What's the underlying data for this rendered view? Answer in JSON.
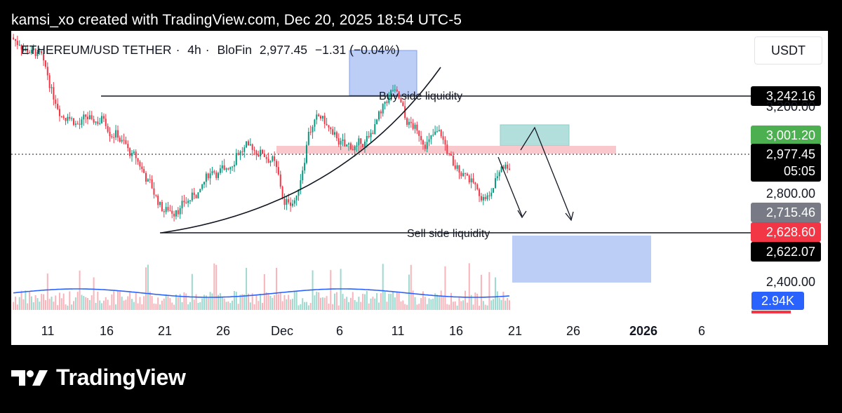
{
  "header": {
    "text": "kamsi_xo created with TradingView.com, Dec 20, 2025 18:54 UTC-5"
  },
  "symbol": {
    "name": "ETHEREUM/USD TETHER",
    "interval": "4h",
    "exchange": "BloFin",
    "price": "2,977.45",
    "change": "−1.31 (−0.04%)"
  },
  "unit": "USDT",
  "price_axis": {
    "tags": [
      {
        "value": "3,242.16",
        "color": "#000000"
      },
      {
        "value": "3,001.20",
        "color": "#4caf50"
      },
      {
        "value": "2,715.46",
        "color": "#787b86"
      },
      {
        "value": "2,628.60",
        "color": "#f23645"
      },
      {
        "value": "2,622.07",
        "color": "#000000"
      }
    ],
    "current": {
      "value": "2,977.45",
      "countdown": "05:05"
    },
    "labels": [
      {
        "value": "3,200.00"
      },
      {
        "value": "2,800.00"
      },
      {
        "value": "2,400.00"
      }
    ]
  },
  "volume": {
    "value": "2.94",
    "unit": "K"
  },
  "annotations": {
    "buy_side": "Buy side liquidity",
    "sell_side": "Sell side liquidity"
  },
  "x_axis": {
    "labels": [
      "11",
      "16",
      "21",
      "26",
      "Dec",
      "6",
      "11",
      "16",
      "21",
      "26",
      "2026",
      "6"
    ]
  },
  "colors": {
    "up": "#089981",
    "down": "#f23645",
    "volume_ma": "#2962ff",
    "zone_blue": "#bccdf6",
    "zone_green": "#b2dfdb",
    "zone_pink": "#f9c8cc"
  },
  "chart_data": {
    "type": "candlestick",
    "title": "ETHEREUM/USD TETHER · 4h · BloFin",
    "x": [
      "2025-11-09",
      "2025-11-10",
      "2025-11-11",
      "2025-11-12",
      "2025-11-13",
      "2025-11-14",
      "2025-11-15",
      "2025-11-16",
      "2025-11-17",
      "2025-11-18",
      "2025-11-19",
      "2025-11-20",
      "2025-11-21",
      "2025-11-22",
      "2025-11-23",
      "2025-11-24",
      "2025-11-25",
      "2025-11-26",
      "2025-11-27",
      "2025-11-28",
      "2025-11-29",
      "2025-11-30",
      "2025-12-01",
      "2025-12-02",
      "2025-12-03",
      "2025-12-04",
      "2025-12-05",
      "2025-12-06",
      "2025-12-07",
      "2025-12-08",
      "2025-12-09",
      "2025-12-10",
      "2025-12-11",
      "2025-12-12",
      "2025-12-13",
      "2025-12-14",
      "2025-12-15",
      "2025-12-16",
      "2025-12-17",
      "2025-12-18",
      "2025-12-19",
      "2025-12-20"
    ],
    "close": [
      3520,
      3490,
      3440,
      3250,
      3190,
      3150,
      3170,
      3180,
      3120,
      3040,
      2960,
      2860,
      2750,
      2760,
      2800,
      2850,
      2940,
      2940,
      3020,
      3050,
      3030,
      3000,
      2780,
      2820,
      3120,
      3180,
      3100,
      3050,
      3050,
      3090,
      3200,
      3310,
      3180,
      3120,
      3080,
      3100,
      2960,
      2930,
      2850,
      2820,
      2960,
      2977.45
    ],
    "ylim": [
      2300,
      3600
    ],
    "y_ticks": [
      2400,
      2800,
      3200
    ],
    "levels": {
      "buy_side_liquidity": 3242.16,
      "sell_side_liquidity": 2628.6
    },
    "volume_last": 2940
  }
}
